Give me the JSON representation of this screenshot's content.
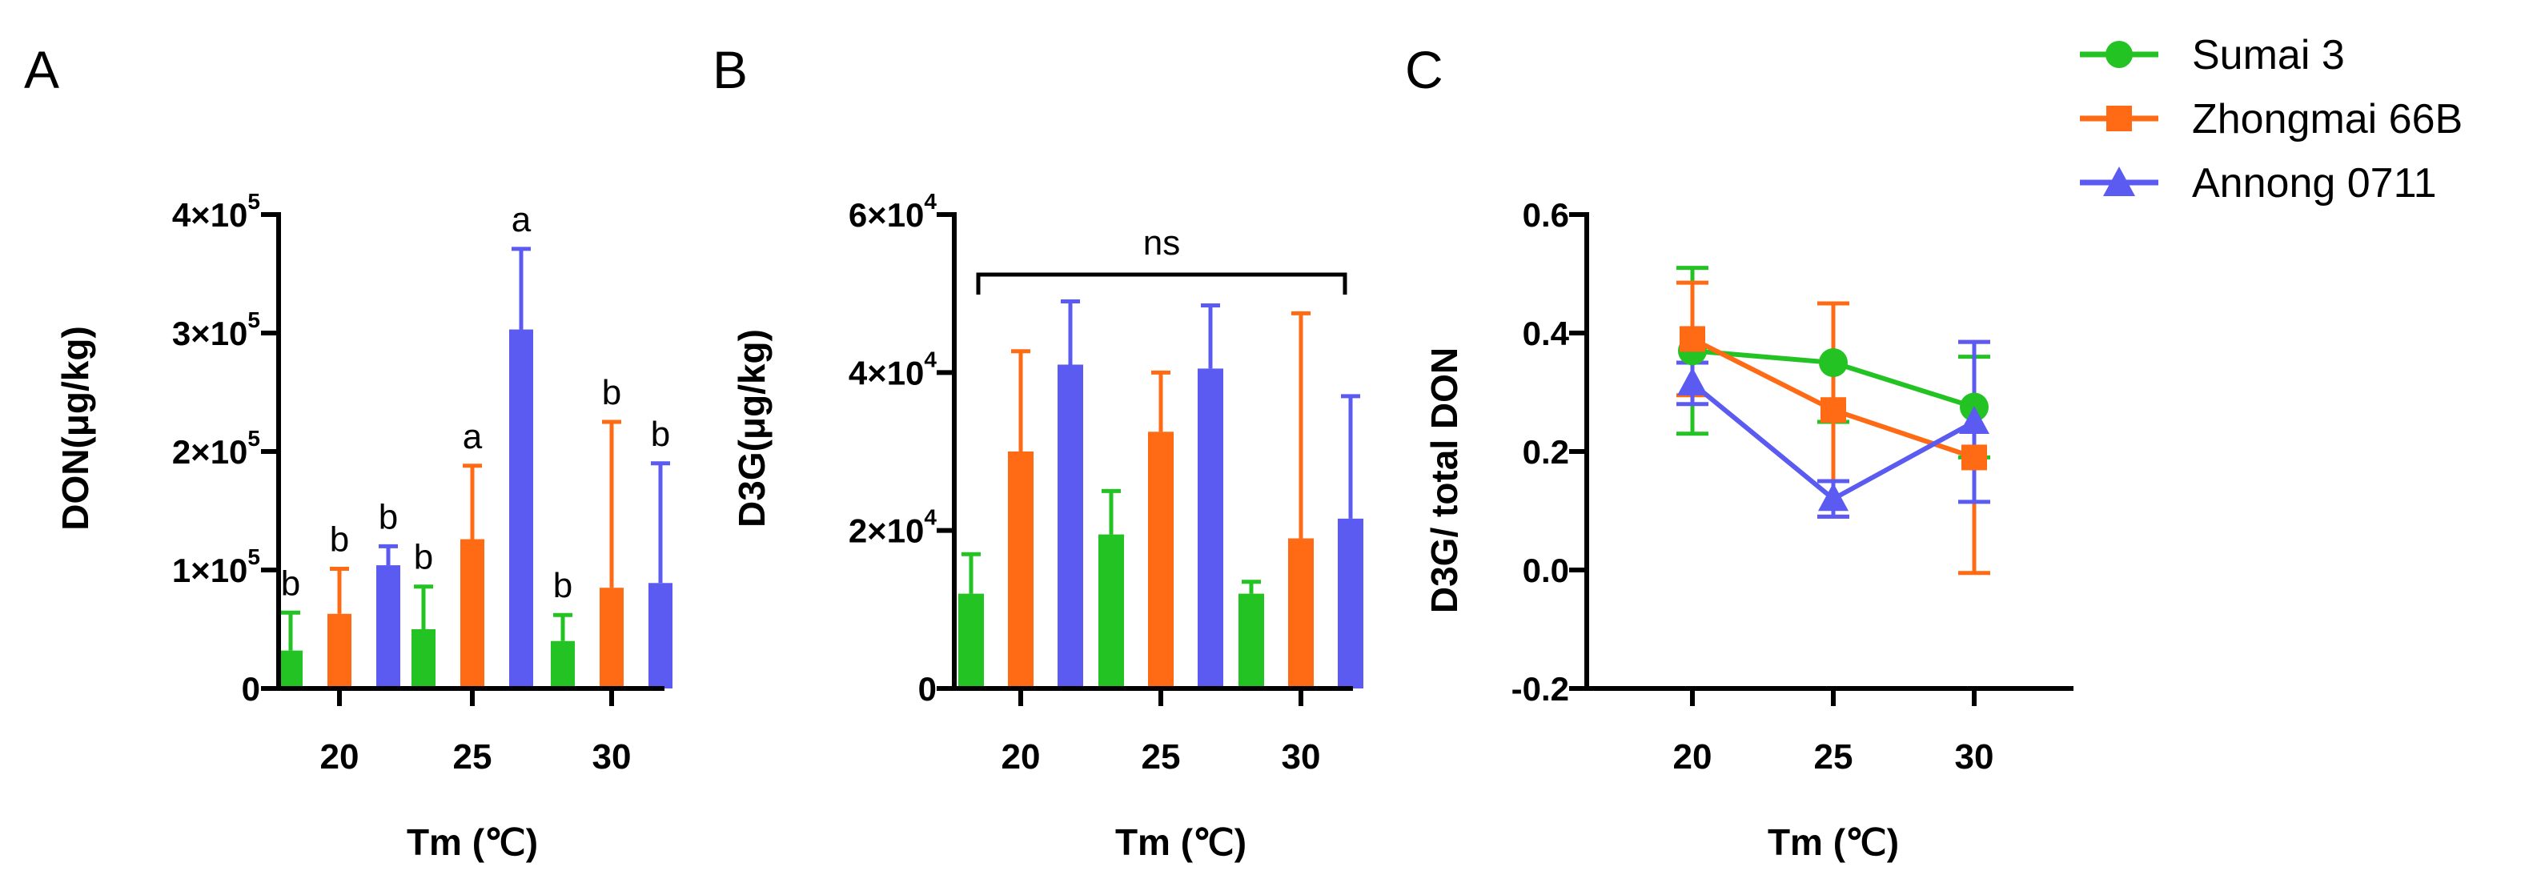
{
  "colors": {
    "Sumai 3": "#22c322",
    "Zhongmai 66B": "#ff6a14",
    "Annong 0711": "#5b5bf2",
    "axis": "#000000"
  },
  "legend": {
    "entries": [
      {
        "name": "Sumai 3",
        "marker": "circle"
      },
      {
        "name": "Zhongmai 66B",
        "marker": "square"
      },
      {
        "name": "Annong 0711",
        "marker": "triangle"
      }
    ],
    "placement": "top-right"
  },
  "chart_data": [
    {
      "panel": "A",
      "type": "bar",
      "xlabel": "Tm (℃)",
      "ylabel": "DON(μg/kg)",
      "categories": [
        "20",
        "25",
        "30"
      ],
      "ylim": [
        0,
        400000
      ],
      "yticks": [
        0,
        100000,
        200000,
        300000,
        400000
      ],
      "ytick_labels": [
        "0",
        "1×10",
        "2×10",
        "3×10",
        "4×10"
      ],
      "ytick_exps": [
        "",
        "5",
        "5",
        "5",
        "5"
      ],
      "series": [
        {
          "name": "Sumai 3",
          "values": [
            32000,
            50000,
            40000
          ],
          "errors": [
            32000,
            36000,
            22000
          ]
        },
        {
          "name": "Zhongmai 66B",
          "values": [
            63000,
            126000,
            85000
          ],
          "errors": [
            38000,
            62000,
            140000
          ]
        },
        {
          "name": "Annong 0711",
          "values": [
            104000,
            303000,
            89000
          ],
          "errors": [
            16000,
            68000,
            101000
          ]
        }
      ],
      "annotations": [
        [
          "b",
          "b",
          "b"
        ],
        [
          "b",
          "a",
          "a"
        ],
        [
          "b",
          "b",
          "b"
        ]
      ]
    },
    {
      "panel": "B",
      "type": "bar",
      "xlabel": "Tm (℃)",
      "ylabel": "D3G(μg/kg)",
      "categories": [
        "20",
        "25",
        "30"
      ],
      "ylim": [
        0,
        60000
      ],
      "yticks": [
        0,
        20000,
        40000,
        60000
      ],
      "ytick_labels": [
        "0",
        "2×10",
        "4×10",
        "6×10"
      ],
      "ytick_exps": [
        "",
        "4",
        "4",
        "4"
      ],
      "series": [
        {
          "name": "Sumai 3",
          "values": [
            12000,
            19500,
            12000
          ],
          "errors": [
            5000,
            5500,
            1500
          ]
        },
        {
          "name": "Zhongmai 66B",
          "values": [
            30000,
            32500,
            19000
          ],
          "errors": [
            12700,
            7500,
            28500
          ]
        },
        {
          "name": "Annong 0711",
          "values": [
            41000,
            40500,
            21500
          ],
          "errors": [
            8000,
            8000,
            15500
          ]
        }
      ],
      "significance": "ns"
    },
    {
      "panel": "C",
      "type": "line",
      "xlabel": "Tm (℃)",
      "ylabel": "D3G/ total DON",
      "categories": [
        "20",
        "25",
        "30"
      ],
      "ylim": [
        -0.2,
        0.6
      ],
      "yticks": [
        -0.2,
        0.0,
        0.2,
        0.4,
        0.6
      ],
      "ytick_labels": [
        "-0.2",
        "0.0",
        "0.2",
        "0.4",
        "0.6"
      ],
      "series": [
        {
          "name": "Sumai 3",
          "values": [
            0.37,
            0.35,
            0.275
          ],
          "errors": [
            0.14,
            0.1,
            0.085
          ]
        },
        {
          "name": "Zhongmai 66B",
          "values": [
            0.39,
            0.27,
            0.19
          ],
          "errors": [
            0.095,
            0.18,
            0.195
          ]
        },
        {
          "name": "Annong 0711",
          "values": [
            0.315,
            0.12,
            0.25
          ],
          "errors": [
            0.035,
            0.03,
            0.135
          ]
        }
      ]
    }
  ]
}
